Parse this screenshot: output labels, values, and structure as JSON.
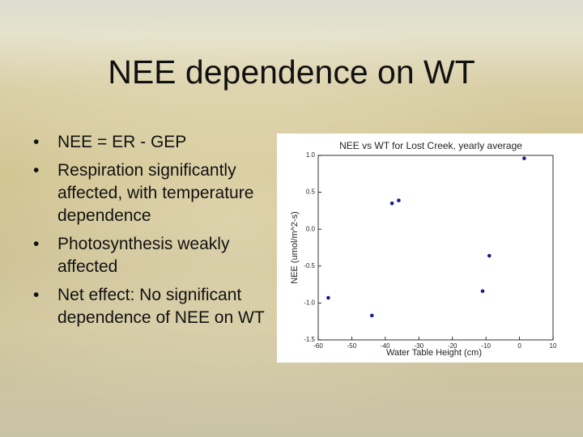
{
  "slide": {
    "title": "NEE dependence on WT",
    "bullets": [
      "NEE = ER - GEP",
      "Respiration significantly affected, with temperature dependence",
      "Photosynthesis weakly affected",
      "Net effect: No significant dependence of NEE on WT"
    ]
  },
  "chart_data": {
    "type": "scatter",
    "title": "NEE vs WT for Lost Creek, yearly average",
    "x_label": "Water Table Height (cm)",
    "y_label": "NEE (umol/m^2-s)",
    "color": "#1a1a8c",
    "x": [
      -57,
      -44,
      -38,
      -36,
      -11,
      -9,
      1.4
    ],
    "values": [
      -0.93,
      -1.17,
      0.35,
      0.39,
      -0.84,
      -0.36,
      0.96
    ],
    "xlim": [
      -60,
      10
    ],
    "xticks": [
      -60,
      -50,
      -40,
      -30,
      -20,
      -10,
      0,
      10
    ],
    "ylim": [
      -1.5,
      1.0
    ],
    "yticks": [
      -1.5,
      {
        "value": -1,
        "label": "-1.0"
      },
      -0.5,
      {
        "value": 0,
        "label": "0.0"
      },
      0.5,
      {
        "value": 1,
        "label": "1.0"
      }
    ],
    "grid": false
  }
}
